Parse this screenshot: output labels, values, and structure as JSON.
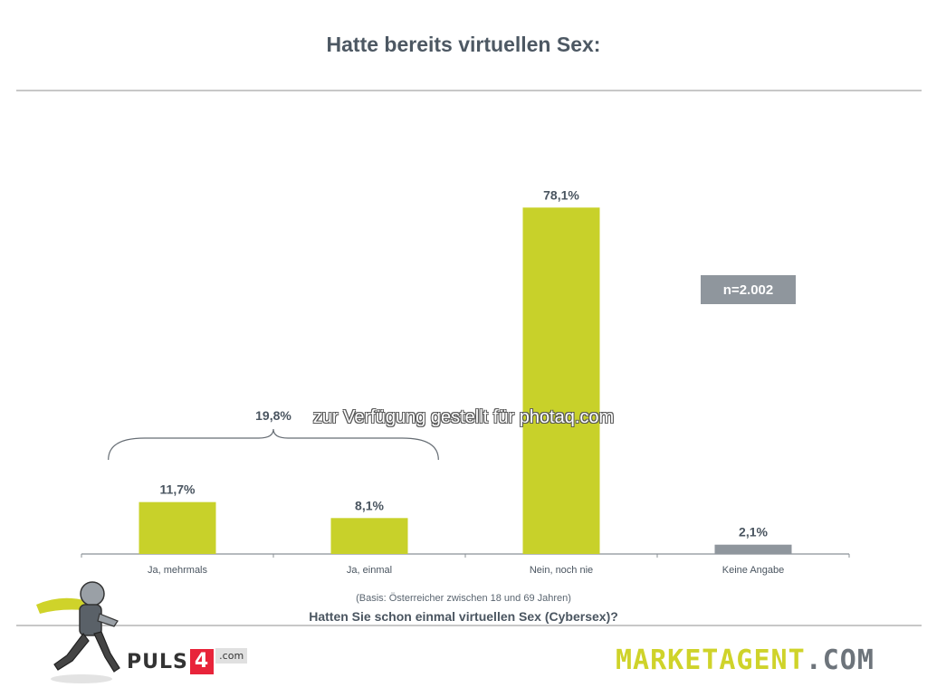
{
  "header": {
    "title": "Hatte bereits virtuellen Sex:"
  },
  "chart_data": {
    "type": "bar",
    "categories": [
      "Ja, mehrmals",
      "Ja, einmal",
      "Nein, noch nie",
      "Keine Angabe"
    ],
    "values": [
      11.7,
      8.1,
      78.1,
      2.1
    ],
    "value_labels": [
      "11,7%",
      "8,1%",
      "78,1%",
      "2,1%"
    ],
    "bar_colors": [
      "#c8d12a",
      "#c8d12a",
      "#c8d12a",
      "#8f969d"
    ],
    "ylim": [
      0,
      100
    ],
    "grid": false,
    "legend": "none",
    "annotations": {
      "bracket_total": "19,8%",
      "bracket_spans": [
        "Ja, mehrmals",
        "Ja, einmal"
      ],
      "sample": "n=2.002"
    }
  },
  "watermark": "zur Verfügung gestellt für photaq.com",
  "footer": {
    "basis": "(Basis: Österreicher zwischen 18 und 69 Jahren)",
    "question": "Hatten Sie schon einmal virtuellen Sex (Cybersex)?",
    "puls_text": "PULS",
    "puls_number": "4",
    "puls_suffix": ".com",
    "marketagent_brand": "MARKETAGENT",
    "marketagent_suffix": ".COM"
  },
  "colors": {
    "accent": "#c8d12a",
    "neutral": "#8f969d",
    "text": "#4a5560"
  }
}
